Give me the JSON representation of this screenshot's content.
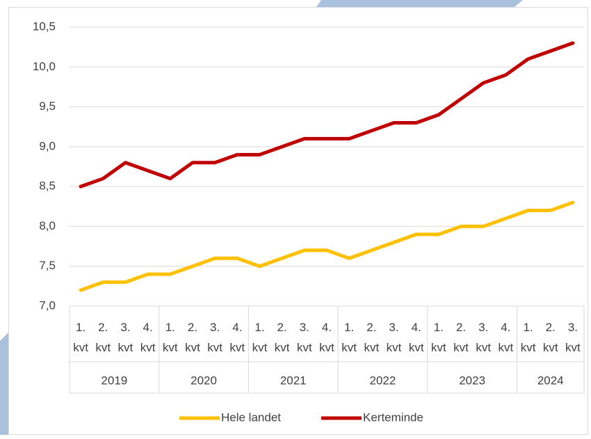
{
  "chart_data": {
    "type": "line",
    "categories": [
      "1. kvt",
      "2. kvt",
      "3. kvt",
      "4. kvt",
      "1. kvt",
      "2. kvt",
      "3. kvt",
      "4. kvt",
      "1. kvt",
      "2. kvt",
      "3. kvt",
      "4. kvt",
      "1. kvt",
      "2. kvt",
      "3. kvt",
      "4. kvt",
      "1. kvt",
      "2. kvt",
      "3. kvt",
      "4. kvt",
      "1. kvt",
      "2. kvt",
      "3. kvt"
    ],
    "category_groups": [
      {
        "label": "2019",
        "span": 4
      },
      {
        "label": "2020",
        "span": 4
      },
      {
        "label": "2021",
        "span": 4
      },
      {
        "label": "2022",
        "span": 4
      },
      {
        "label": "2023",
        "span": 4
      },
      {
        "label": "2024",
        "span": 3
      }
    ],
    "series": [
      {
        "name": "Hele landet",
        "color": "#ffc000",
        "values": [
          7.2,
          7.3,
          7.3,
          7.4,
          7.4,
          7.5,
          7.6,
          7.6,
          7.5,
          7.6,
          7.7,
          7.7,
          7.6,
          7.7,
          7.8,
          7.9,
          7.9,
          8.0,
          8.0,
          8.1,
          8.2,
          8.2,
          8.3
        ]
      },
      {
        "name": "Kerteminde",
        "color": "#c00000",
        "values": [
          8.5,
          8.6,
          8.8,
          8.7,
          8.6,
          8.8,
          8.8,
          8.9,
          8.9,
          9.0,
          9.1,
          9.1,
          9.1,
          9.2,
          9.3,
          9.3,
          9.4,
          9.6,
          9.8,
          9.9,
          10.1,
          10.2,
          10.3
        ]
      }
    ],
    "ylim": [
      7.0,
      10.5
    ],
    "yticks": [
      {
        "value": 7.0,
        "label": "7,0"
      },
      {
        "value": 7.5,
        "label": "7,5"
      },
      {
        "value": 8.0,
        "label": "8,0"
      },
      {
        "value": 8.5,
        "label": "8,5"
      },
      {
        "value": 9.0,
        "label": "9,0"
      },
      {
        "value": 9.5,
        "label": "9,5"
      },
      {
        "value": 10.0,
        "label": "10,0"
      },
      {
        "value": 10.5,
        "label": "10,5"
      }
    ],
    "grid": true,
    "legend": "bottom"
  }
}
